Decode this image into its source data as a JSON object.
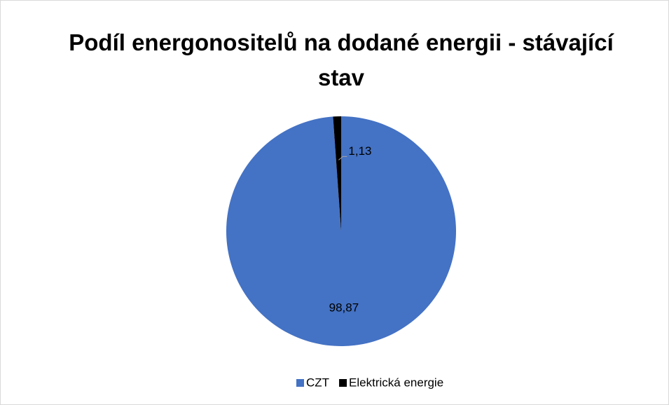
{
  "chart_data": {
    "type": "pie",
    "title": "Podíl energonositelů na dodané energii - stávající stav",
    "categories": [
      "CZT",
      "Elektrická energie"
    ],
    "values": [
      98.87,
      1.13
    ],
    "value_labels": [
      "98,87",
      "1,13"
    ],
    "colors": [
      "#4472c4",
      "#000000"
    ],
    "legend": "bottom"
  }
}
